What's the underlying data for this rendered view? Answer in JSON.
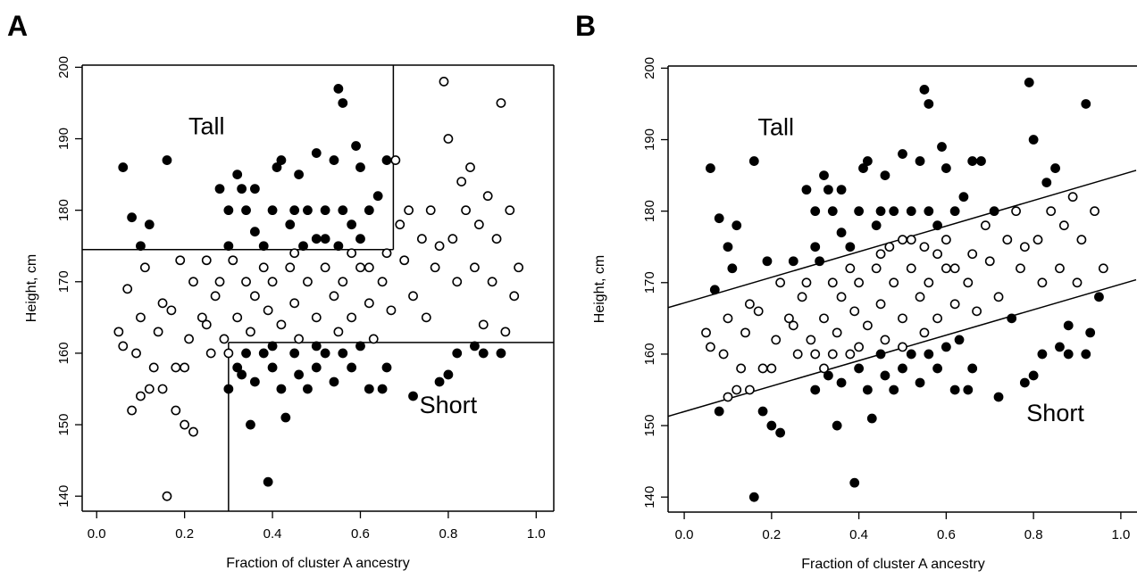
{
  "chart_data": [
    {
      "type": "scatter",
      "panel": "A",
      "x_label": "Fraction of cluster A ancestry",
      "y_label": "Height, cm",
      "xlim": [
        -0.033,
        1.04
      ],
      "ylim": [
        137.9,
        200.3
      ],
      "xticks": [
        {
          "value": 0,
          "label": "0.0"
        },
        0.2,
        0.4,
        0.6,
        0.8,
        {
          "value": 1,
          "label": "1.0"
        }
      ],
      "yticks": [
        140,
        150,
        160,
        170,
        180,
        190,
        200
      ],
      "segments": [
        {
          "x": [
            -0.033,
            0.675
          ],
          "y": [
            174.5,
            174.5
          ]
        },
        {
          "x": [
            0.675,
            0.675
          ],
          "y": [
            174.5,
            200.3
          ]
        },
        {
          "x": [
            0.3,
            1.04
          ],
          "y": [
            161.5,
            161.5
          ]
        },
        {
          "x": [
            0.3,
            0.3
          ],
          "y": [
            161.5,
            137.9
          ]
        }
      ],
      "annotations": [
        {
          "text": "Tall",
          "x": 0.25,
          "y": 191.5
        },
        {
          "text": "Short",
          "x": 0.8,
          "y": 152.5
        }
      ],
      "series": [
        {
          "marker": "filled",
          "color": "#000000",
          "x": [
            0.06,
            0.08,
            0.1,
            0.12,
            0.16,
            0.28,
            0.3,
            0.32,
            0.33,
            0.34,
            0.36,
            0.38,
            0.4,
            0.41,
            0.42,
            0.45,
            0.46,
            0.48,
            0.5,
            0.5,
            0.52,
            0.54,
            0.55,
            0.56,
            0.56,
            0.58,
            0.59,
            0.6,
            0.62,
            0.64,
            0.66,
            0.44,
            0.52,
            0.55,
            0.6,
            0.3,
            0.47,
            0.36,
            0.3,
            0.32,
            0.34,
            0.35,
            0.36,
            0.38,
            0.39,
            0.4,
            0.42,
            0.43,
            0.45,
            0.46,
            0.48,
            0.5,
            0.52,
            0.54,
            0.56,
            0.58,
            0.6,
            0.62,
            0.65,
            0.72,
            0.78,
            0.8,
            0.82,
            0.86,
            0.88,
            0.92,
            0.66,
            0.33,
            0.4,
            0.5
          ],
          "values": [
            186,
            179,
            175,
            178,
            187,
            183,
            180,
            185,
            183,
            180,
            183,
            175,
            180,
            186,
            187,
            180,
            185,
            180,
            188,
            176,
            180,
            187,
            197,
            195,
            180,
            178,
            189,
            186,
            180,
            182,
            187,
            178,
            176,
            175,
            176,
            175,
            175,
            177,
            155,
            158,
            160,
            150,
            156,
            160,
            142,
            158,
            155,
            151,
            160,
            157,
            155,
            158,
            160,
            156,
            160,
            158,
            161,
            155,
            155,
            154,
            156,
            157,
            160,
            161,
            160,
            160,
            158,
            157,
            161,
            161
          ]
        },
        {
          "marker": "open",
          "color": "#000000",
          "x": [
            0.05,
            0.06,
            0.07,
            0.08,
            0.09,
            0.1,
            0.11,
            0.12,
            0.13,
            0.14,
            0.15,
            0.16,
            0.17,
            0.18,
            0.19,
            0.2,
            0.21,
            0.22,
            0.22,
            0.24,
            0.25,
            0.26,
            0.27,
            0.28,
            0.29,
            0.31,
            0.32,
            0.34,
            0.35,
            0.36,
            0.38,
            0.39,
            0.4,
            0.42,
            0.44,
            0.45,
            0.46,
            0.48,
            0.5,
            0.52,
            0.54,
            0.55,
            0.56,
            0.58,
            0.6,
            0.62,
            0.63,
            0.65,
            0.66,
            0.67,
            0.68,
            0.69,
            0.7,
            0.71,
            0.72,
            0.74,
            0.75,
            0.76,
            0.77,
            0.78,
            0.79,
            0.8,
            0.81,
            0.82,
            0.83,
            0.84,
            0.85,
            0.86,
            0.87,
            0.88,
            0.89,
            0.9,
            0.91,
            0.92,
            0.93,
            0.94,
            0.95,
            0.96,
            0.3,
            0.2,
            0.15,
            0.25,
            0.45,
            0.58,
            0.62,
            0.1,
            0.18
          ],
          "values": [
            163,
            161,
            169,
            152,
            160,
            165,
            172,
            155,
            158,
            163,
            167,
            140,
            166,
            158,
            173,
            150,
            162,
            149,
            170,
            165,
            173,
            160,
            168,
            170,
            162,
            173,
            165,
            170,
            163,
            168,
            172,
            166,
            170,
            164,
            172,
            167,
            162,
            170,
            165,
            172,
            168,
            163,
            170,
            165,
            172,
            167,
            162,
            170,
            174,
            166,
            187,
            178,
            173,
            180,
            168,
            176,
            165,
            180,
            172,
            175,
            198,
            190,
            176,
            170,
            184,
            180,
            186,
            172,
            178,
            164,
            182,
            170,
            176,
            195,
            163,
            180,
            168,
            172,
            160,
            158,
            155,
            164,
            174,
            174,
            172,
            154,
            152
          ]
        }
      ]
    },
    {
      "type": "scatter",
      "panel": "B",
      "x_label": "Fraction of cluster A ancestry",
      "y_label": "Height, cm",
      "xlim": [
        -0.037,
        1.035
      ],
      "ylim": [
        137.9,
        200.3
      ],
      "xticks": [
        {
          "value": 0,
          "label": "0.0"
        },
        0.2,
        0.4,
        0.6,
        0.8,
        {
          "value": 1,
          "label": "1.0"
        }
      ],
      "yticks": [
        140,
        150,
        160,
        170,
        180,
        190,
        200
      ],
      "segments": [
        {
          "x": [
            -0.037,
            1.035
          ],
          "y": [
            166.5,
            185.7
          ]
        },
        {
          "x": [
            -0.037,
            1.035
          ],
          "y": [
            151.3,
            170.4
          ]
        }
      ],
      "annotations": [
        {
          "text": "Tall",
          "x": 0.21,
          "y": 191.5
        },
        {
          "text": "Short",
          "x": 0.85,
          "y": 151.5
        }
      ],
      "series": [
        {
          "marker": "filled",
          "color": "#000000",
          "x": [
            0.06,
            0.08,
            0.1,
            0.12,
            0.16,
            0.28,
            0.3,
            0.32,
            0.33,
            0.34,
            0.36,
            0.38,
            0.4,
            0.41,
            0.42,
            0.45,
            0.46,
            0.48,
            0.5,
            0.52,
            0.54,
            0.55,
            0.56,
            0.56,
            0.58,
            0.59,
            0.6,
            0.62,
            0.64,
            0.66,
            0.44,
            0.3,
            0.36,
            0.3,
            0.35,
            0.36,
            0.39,
            0.4,
            0.42,
            0.43,
            0.45,
            0.46,
            0.48,
            0.5,
            0.52,
            0.54,
            0.56,
            0.58,
            0.6,
            0.62,
            0.65,
            0.72,
            0.78,
            0.8,
            0.82,
            0.86,
            0.88,
            0.92,
            0.66,
            0.33,
            0.07,
            0.08,
            0.11,
            0.16,
            0.19,
            0.2,
            0.22,
            0.25,
            0.31,
            0.63,
            0.68,
            0.71,
            0.75,
            0.79,
            0.8,
            0.83,
            0.85,
            0.88,
            0.92,
            0.93,
            0.95,
            0.18
          ],
          "values": [
            186,
            179,
            175,
            178,
            187,
            183,
            180,
            185,
            183,
            180,
            183,
            175,
            180,
            186,
            187,
            180,
            185,
            180,
            188,
            180,
            187,
            197,
            195,
            180,
            178,
            189,
            186,
            180,
            182,
            187,
            178,
            175,
            177,
            155,
            150,
            156,
            142,
            158,
            155,
            151,
            160,
            157,
            155,
            158,
            160,
            156,
            160,
            158,
            161,
            155,
            155,
            154,
            156,
            157,
            160,
            161,
            160,
            160,
            158,
            157,
            169,
            152,
            172,
            140,
            173,
            150,
            149,
            173,
            173,
            162,
            187,
            180,
            165,
            198,
            190,
            184,
            186,
            164,
            195,
            163,
            168,
            152
          ]
        },
        {
          "marker": "open",
          "color": "#000000",
          "x": [
            0.5,
            0.52,
            0.55,
            0.6,
            0.47,
            0.32,
            0.34,
            0.38,
            0.4,
            0.5,
            0.05,
            0.06,
            0.09,
            0.1,
            0.12,
            0.13,
            0.14,
            0.15,
            0.17,
            0.18,
            0.21,
            0.22,
            0.24,
            0.26,
            0.27,
            0.28,
            0.29,
            0.32,
            0.34,
            0.35,
            0.36,
            0.38,
            0.39,
            0.4,
            0.42,
            0.44,
            0.45,
            0.46,
            0.48,
            0.5,
            0.52,
            0.54,
            0.55,
            0.56,
            0.58,
            0.6,
            0.62,
            0.65,
            0.66,
            0.67,
            0.69,
            0.7,
            0.72,
            0.74,
            0.76,
            0.77,
            0.78,
            0.81,
            0.82,
            0.84,
            0.86,
            0.87,
            0.89,
            0.9,
            0.91,
            0.94,
            0.96,
            0.3,
            0.2,
            0.15,
            0.25,
            0.45,
            0.58,
            0.62,
            0.1
          ],
          "values": [
            176,
            176,
            175,
            176,
            175,
            158,
            160,
            160,
            161,
            161,
            163,
            161,
            160,
            165,
            155,
            158,
            163,
            167,
            166,
            158,
            162,
            170,
            165,
            160,
            168,
            170,
            162,
            165,
            170,
            163,
            168,
            172,
            166,
            170,
            164,
            172,
            167,
            162,
            170,
            165,
            172,
            168,
            163,
            170,
            165,
            172,
            167,
            170,
            174,
            166,
            178,
            173,
            168,
            176,
            180,
            172,
            175,
            176,
            170,
            180,
            172,
            178,
            182,
            170,
            176,
            180,
            172,
            160,
            158,
            155,
            164,
            174,
            174,
            172,
            154
          ]
        }
      ]
    }
  ]
}
